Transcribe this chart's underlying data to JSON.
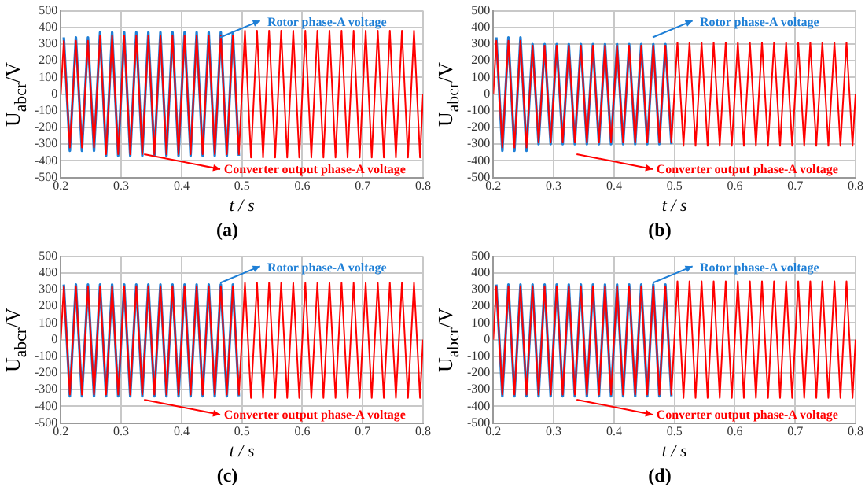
{
  "chart_data": [
    {
      "type": "line",
      "title": "(a)",
      "xlabel": "t / s",
      "ylabel": "U$_{abcr}$/V",
      "xlim": [
        0.2,
        0.8
      ],
      "xticks": [
        0.2,
        0.3,
        0.4,
        0.5,
        0.6,
        0.7,
        0.8
      ],
      "ylim": [
        -500,
        500
      ],
      "yticks": [
        -500,
        -400,
        -300,
        -200,
        -100,
        0,
        100,
        200,
        300,
        400,
        500
      ],
      "grid": true,
      "legend": "right",
      "x": [
        0.2,
        0.205,
        0.215,
        0.225,
        0.235,
        0.245,
        0.255,
        0.265,
        0.275,
        0.285,
        0.295,
        0.305,
        0.315,
        0.325,
        0.335,
        0.345,
        0.355,
        0.365,
        0.375,
        0.385,
        0.395,
        0.405,
        0.415,
        0.425,
        0.435,
        0.445,
        0.455,
        0.465,
        0.475,
        0.485,
        0.495,
        0.505,
        0.515,
        0.525,
        0.535,
        0.545,
        0.555,
        0.565,
        0.575,
        0.585,
        0.595,
        0.605,
        0.615,
        0.625,
        0.635,
        0.645,
        0.655,
        0.665,
        0.675,
        0.685,
        0.695,
        0.705,
        0.715,
        0.725,
        0.735,
        0.745,
        0.755,
        0.765,
        0.775,
        0.785,
        0.795,
        0.8
      ],
      "series": [
        {
          "name": "Rotor phase-A voltage",
          "color": "#1e7fd6",
          "x": [
            0.205,
            0.215,
            0.225,
            0.235,
            0.245,
            0.255,
            0.265,
            0.275,
            0.285,
            0.295,
            0.305,
            0.315,
            0.325,
            0.335,
            0.345,
            0.355,
            0.365,
            0.375,
            0.385,
            0.395,
            0.405,
            0.415,
            0.425,
            0.435,
            0.445,
            0.455,
            0.465,
            0.475,
            0.485,
            0.495
          ],
          "values": [
            340,
            -340,
            340,
            -340,
            340,
            -340,
            370,
            -370,
            370,
            -370,
            370,
            -370,
            370,
            -370,
            370,
            -370,
            370,
            -370,
            370,
            -370,
            370,
            -370,
            370,
            -370,
            370,
            -370,
            370,
            -370,
            370,
            -370
          ]
        },
        {
          "name": "Converter output phase-A voltage",
          "color": "#ff0000",
          "values": [
            0,
            320,
            -320,
            320,
            -320,
            320,
            -320,
            350,
            -360,
            350,
            -360,
            350,
            -360,
            350,
            -360,
            350,
            -360,
            350,
            -360,
            350,
            -360,
            350,
            -360,
            350,
            -360,
            350,
            -360,
            350,
            -360,
            350,
            -360,
            380,
            -380,
            380,
            -380,
            380,
            -380,
            380,
            -380,
            380,
            -380,
            380,
            -380,
            380,
            -380,
            380,
            -380,
            380,
            -380,
            380,
            -380,
            380,
            -380,
            380,
            -380,
            380,
            -380,
            380,
            -380,
            380,
            -380,
            0
          ]
        }
      ]
    },
    {
      "type": "line",
      "title": "(b)",
      "xlabel": "t / s",
      "ylabel": "U$_{abcr}$/V",
      "xlim": [
        0.2,
        0.8
      ],
      "xticks": [
        0.2,
        0.3,
        0.4,
        0.5,
        0.6,
        0.7,
        0.8
      ],
      "ylim": [
        -500,
        500
      ],
      "yticks": [
        -500,
        -400,
        -300,
        -200,
        -100,
        0,
        100,
        200,
        300,
        400,
        500
      ],
      "grid": true,
      "legend": "right",
      "x": [
        0.2,
        0.205,
        0.215,
        0.225,
        0.235,
        0.245,
        0.255,
        0.265,
        0.275,
        0.285,
        0.295,
        0.305,
        0.315,
        0.325,
        0.335,
        0.345,
        0.355,
        0.365,
        0.375,
        0.385,
        0.395,
        0.405,
        0.415,
        0.425,
        0.435,
        0.445,
        0.455,
        0.465,
        0.475,
        0.485,
        0.495,
        0.505,
        0.515,
        0.525,
        0.535,
        0.545,
        0.555,
        0.565,
        0.575,
        0.585,
        0.595,
        0.605,
        0.615,
        0.625,
        0.635,
        0.645,
        0.655,
        0.665,
        0.675,
        0.685,
        0.695,
        0.705,
        0.715,
        0.725,
        0.735,
        0.745,
        0.755,
        0.765,
        0.775,
        0.785,
        0.795,
        0.8
      ],
      "series": [
        {
          "name": "Rotor phase-A voltage",
          "color": "#1e7fd6",
          "x": [
            0.205,
            0.215,
            0.225,
            0.235,
            0.245,
            0.255,
            0.265,
            0.275,
            0.285,
            0.295,
            0.305,
            0.315,
            0.325,
            0.335,
            0.345,
            0.355,
            0.365,
            0.375,
            0.385,
            0.395,
            0.405,
            0.415,
            0.425,
            0.435,
            0.445,
            0.455,
            0.465,
            0.475,
            0.485,
            0.495
          ],
          "values": [
            340,
            -340,
            340,
            -340,
            340,
            -340,
            300,
            -300,
            300,
            -300,
            300,
            -300,
            300,
            -300,
            300,
            -300,
            300,
            -300,
            300,
            -300,
            300,
            -300,
            300,
            -300,
            300,
            -300,
            300,
            -300,
            300,
            -300
          ]
        },
        {
          "name": "Converter output phase-A voltage",
          "color": "#ff0000",
          "values": [
            0,
            320,
            -320,
            320,
            -320,
            320,
            -320,
            290,
            -290,
            290,
            -290,
            290,
            -290,
            290,
            -290,
            290,
            -290,
            290,
            -290,
            290,
            -290,
            290,
            -290,
            290,
            -290,
            290,
            -290,
            290,
            -290,
            290,
            -290,
            310,
            -310,
            310,
            -310,
            310,
            -310,
            310,
            -310,
            310,
            -310,
            310,
            -310,
            310,
            -310,
            310,
            -310,
            310,
            -310,
            310,
            -310,
            310,
            -310,
            310,
            -310,
            310,
            -310,
            310,
            -310,
            310,
            -310,
            0
          ]
        }
      ]
    },
    {
      "type": "line",
      "title": "(c)",
      "xlabel": "t / s",
      "ylabel": "U$_{abcr}$/V",
      "xlim": [
        0.2,
        0.8
      ],
      "xticks": [
        0.2,
        0.3,
        0.4,
        0.5,
        0.6,
        0.7,
        0.8
      ],
      "ylim": [
        -500,
        500
      ],
      "yticks": [
        -500,
        -400,
        -300,
        -200,
        -100,
        0,
        100,
        200,
        300,
        400,
        500
      ],
      "grid": true,
      "legend": "right",
      "x": [
        0.2,
        0.205,
        0.215,
        0.225,
        0.235,
        0.245,
        0.255,
        0.265,
        0.275,
        0.285,
        0.295,
        0.305,
        0.315,
        0.325,
        0.335,
        0.345,
        0.355,
        0.365,
        0.375,
        0.385,
        0.395,
        0.405,
        0.415,
        0.425,
        0.435,
        0.445,
        0.455,
        0.465,
        0.475,
        0.485,
        0.495,
        0.505,
        0.515,
        0.525,
        0.535,
        0.545,
        0.555,
        0.565,
        0.575,
        0.585,
        0.595,
        0.605,
        0.615,
        0.625,
        0.635,
        0.645,
        0.655,
        0.665,
        0.675,
        0.685,
        0.695,
        0.705,
        0.715,
        0.725,
        0.735,
        0.745,
        0.755,
        0.765,
        0.775,
        0.785,
        0.795,
        0.8
      ],
      "series": [
        {
          "name": "Rotor phase-A voltage",
          "color": "#1e7fd6",
          "x": [
            0.205,
            0.215,
            0.225,
            0.235,
            0.245,
            0.255,
            0.265,
            0.275,
            0.285,
            0.295,
            0.305,
            0.315,
            0.325,
            0.335,
            0.345,
            0.355,
            0.365,
            0.375,
            0.385,
            0.395,
            0.405,
            0.415,
            0.425,
            0.435,
            0.445,
            0.455,
            0.465,
            0.475,
            0.485,
            0.495
          ],
          "values": [
            330,
            -340,
            330,
            -340,
            330,
            -340,
            330,
            -340,
            330,
            -340,
            330,
            -340,
            330,
            -340,
            330,
            -340,
            330,
            -340,
            330,
            -340,
            330,
            -340,
            330,
            -340,
            330,
            -340,
            330,
            -340,
            330,
            -340
          ]
        },
        {
          "name": "Converter output phase-A voltage",
          "color": "#ff0000",
          "values": [
            0,
            320,
            -330,
            320,
            -330,
            320,
            -330,
            320,
            -330,
            320,
            -330,
            320,
            -330,
            320,
            -330,
            320,
            -330,
            320,
            -330,
            320,
            -330,
            320,
            -330,
            320,
            -330,
            320,
            -330,
            320,
            -330,
            320,
            -330,
            340,
            -350,
            340,
            -350,
            340,
            -350,
            340,
            -350,
            340,
            -350,
            340,
            -350,
            340,
            -350,
            340,
            -350,
            340,
            -350,
            340,
            -350,
            340,
            -350,
            340,
            -350,
            340,
            -350,
            340,
            -350,
            340,
            -350,
            0
          ]
        }
      ]
    },
    {
      "type": "line",
      "title": "(d)",
      "xlabel": "t / s",
      "ylabel": "U$_{abcr}$/V",
      "xlim": [
        0.2,
        0.8
      ],
      "xticks": [
        0.2,
        0.3,
        0.4,
        0.5,
        0.6,
        0.7,
        0.8
      ],
      "ylim": [
        -500,
        500
      ],
      "yticks": [
        -500,
        -400,
        -300,
        -200,
        -100,
        0,
        100,
        200,
        300,
        400,
        500
      ],
      "grid": true,
      "legend": "right",
      "x": [
        0.2,
        0.205,
        0.215,
        0.225,
        0.235,
        0.245,
        0.255,
        0.265,
        0.275,
        0.285,
        0.295,
        0.305,
        0.315,
        0.325,
        0.335,
        0.345,
        0.355,
        0.365,
        0.375,
        0.385,
        0.395,
        0.405,
        0.415,
        0.425,
        0.435,
        0.445,
        0.455,
        0.465,
        0.475,
        0.485,
        0.495,
        0.505,
        0.515,
        0.525,
        0.535,
        0.545,
        0.555,
        0.565,
        0.575,
        0.585,
        0.595,
        0.605,
        0.615,
        0.625,
        0.635,
        0.645,
        0.655,
        0.665,
        0.675,
        0.685,
        0.695,
        0.705,
        0.715,
        0.725,
        0.735,
        0.745,
        0.755,
        0.765,
        0.775,
        0.785,
        0.795,
        0.8
      ],
      "series": [
        {
          "name": "Rotor phase-A voltage",
          "color": "#1e7fd6",
          "x": [
            0.205,
            0.215,
            0.225,
            0.235,
            0.245,
            0.255,
            0.265,
            0.275,
            0.285,
            0.295,
            0.305,
            0.315,
            0.325,
            0.335,
            0.345,
            0.355,
            0.365,
            0.375,
            0.385,
            0.395,
            0.405,
            0.415,
            0.425,
            0.435,
            0.445,
            0.455,
            0.465,
            0.475,
            0.485,
            0.495
          ],
          "values": [
            330,
            -340,
            330,
            -340,
            330,
            -340,
            330,
            -340,
            330,
            -340,
            330,
            -340,
            330,
            -340,
            330,
            -340,
            330,
            -340,
            330,
            -340,
            330,
            -340,
            330,
            -340,
            330,
            -340,
            330,
            -340,
            330,
            -340
          ]
        },
        {
          "name": "Converter output phase-A voltage",
          "color": "#ff0000",
          "values": [
            0,
            320,
            -330,
            320,
            -330,
            320,
            -330,
            320,
            -330,
            320,
            -330,
            320,
            -330,
            320,
            -330,
            320,
            -330,
            320,
            -330,
            320,
            -330,
            320,
            -330,
            320,
            -330,
            320,
            -330,
            320,
            -330,
            320,
            -330,
            350,
            -350,
            350,
            -350,
            350,
            -350,
            350,
            -350,
            350,
            -350,
            350,
            -350,
            350,
            -350,
            350,
            -350,
            350,
            -350,
            350,
            -350,
            350,
            -350,
            350,
            -350,
            350,
            -350,
            350,
            -350,
            350,
            -350,
            0
          ]
        }
      ]
    }
  ]
}
